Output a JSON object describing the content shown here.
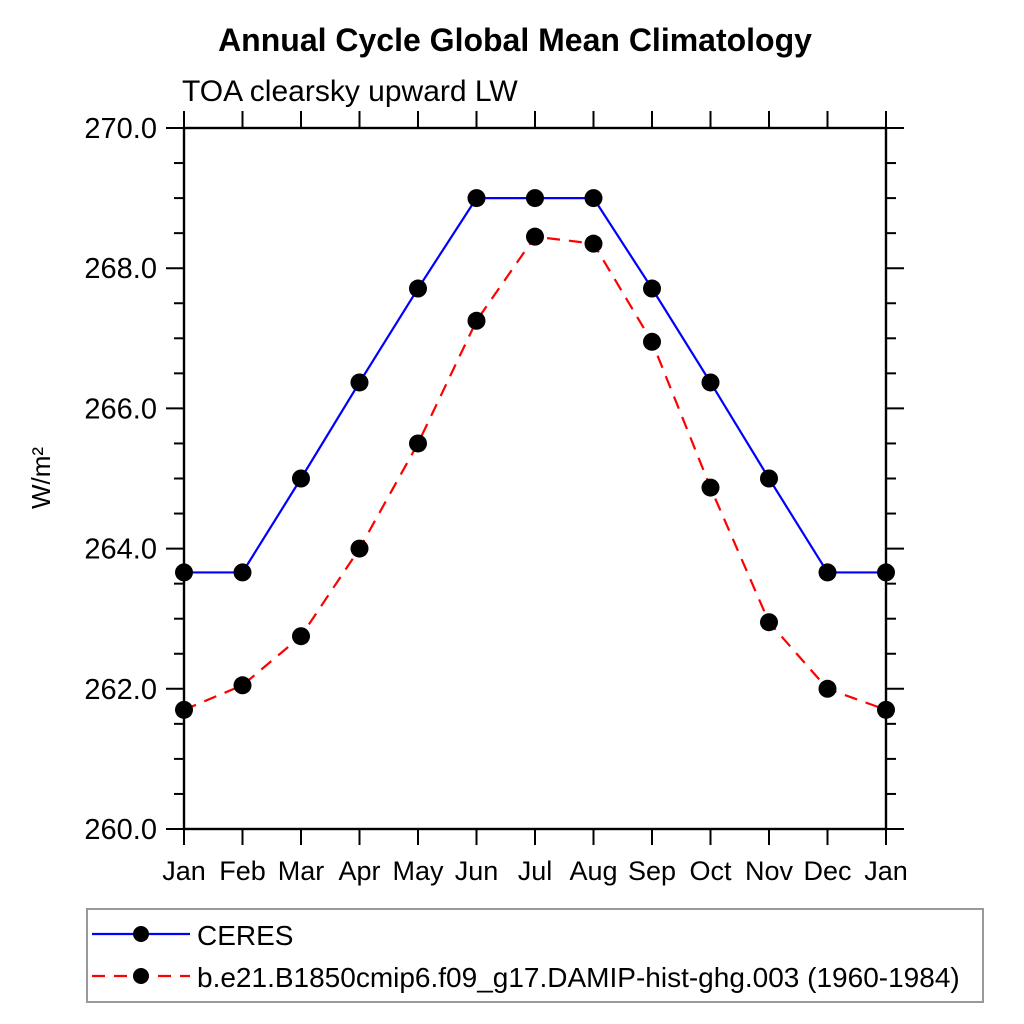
{
  "chart_data": {
    "type": "line",
    "title": "Annual Cycle Global Mean Climatology",
    "subtitle": "TOA clearsky upward LW",
    "xlabel": "",
    "ylabel": "W/m²",
    "x_categories": [
      "Jan",
      "Feb",
      "Mar",
      "Apr",
      "May",
      "Jun",
      "Jul",
      "Aug",
      "Sep",
      "Oct",
      "Nov",
      "Dec",
      "Jan"
    ],
    "ylim": [
      260.0,
      270.0
    ],
    "ytick_major_values": [
      260.0,
      262.0,
      264.0,
      266.0,
      268.0,
      270.0
    ],
    "ytick_major_labels": [
      "260.0",
      "262.0",
      "264.0",
      "266.0",
      "268.0",
      "270.0"
    ],
    "ytick_minor_step": 0.5,
    "grid": false,
    "frame": "box-with-outward-ticks",
    "legend_position": "bottom-left",
    "legend_border_color": "#999999",
    "axis_color": "#000000",
    "marker_color": "#000000",
    "series": [
      {
        "name": "CERES",
        "color": "#0000ff",
        "line_style": "solid",
        "marker": "filled-circle",
        "values": [
          263.66,
          263.66,
          265.0,
          266.37,
          267.71,
          269.0,
          269.0,
          269.0,
          267.71,
          266.37,
          265.0,
          263.66,
          263.66
        ]
      },
      {
        "name": "b.e21.B1850cmip6.f09_g17.DAMIP-hist-ghg.003 (1960-1984)",
        "color": "#ff0000",
        "line_style": "dashed",
        "marker": "filled-circle",
        "values": [
          261.7,
          262.05,
          262.75,
          264.0,
          265.5,
          267.25,
          268.45,
          268.35,
          266.95,
          264.87,
          262.95,
          262.0,
          261.7
        ]
      }
    ]
  }
}
